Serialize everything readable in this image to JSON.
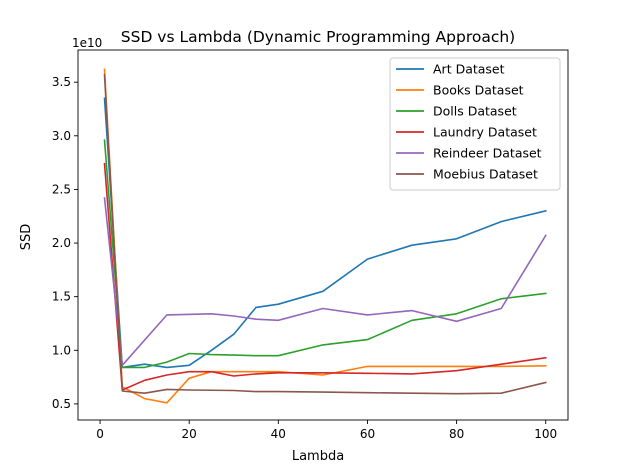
{
  "chart_data": {
    "type": "line",
    "title": "SSD vs Lambda (Dynamic Programming Approach)",
    "xlabel": "Lambda",
    "ylabel": "SSD",
    "y_offset_label": "1e10",
    "xlim": [
      -4.95,
      105.0
    ],
    "ylim": [
      0.35,
      3.8
    ],
    "xticks": [
      0,
      20,
      40,
      60,
      80,
      100
    ],
    "yticks": [
      0.5,
      1.0,
      1.5,
      2.0,
      2.5,
      3.0,
      3.5
    ],
    "ytick_labels": [
      "0.5",
      "1.0",
      "1.5",
      "2.0",
      "2.5",
      "3.0",
      "3.5"
    ],
    "grid": false,
    "legend_position": "top-right",
    "series": [
      {
        "name": "Art Dataset",
        "color": "#1f77b4",
        "x": [
          1,
          5,
          10,
          15,
          20,
          25,
          30,
          35,
          40,
          50,
          60,
          70,
          80,
          90,
          100
        ],
        "y": [
          3.35,
          0.84,
          0.87,
          0.84,
          0.86,
          1.0,
          1.15,
          1.4,
          1.43,
          1.55,
          1.85,
          1.98,
          2.04,
          2.2,
          2.3
        ]
      },
      {
        "name": "Books Dataset",
        "color": "#ff7f0e",
        "x": [
          1,
          5,
          10,
          15,
          20,
          25,
          30,
          35,
          40,
          50,
          60,
          70,
          80,
          90,
          100
        ],
        "y": [
          3.62,
          0.66,
          0.55,
          0.51,
          0.74,
          0.8,
          0.8,
          0.8,
          0.8,
          0.77,
          0.85,
          0.85,
          0.85,
          0.85,
          0.855
        ]
      },
      {
        "name": "Dolls Dataset",
        "color": "#2ca02c",
        "x": [
          1,
          5,
          10,
          15,
          20,
          25,
          30,
          35,
          40,
          50,
          60,
          70,
          80,
          90,
          100
        ],
        "y": [
          2.96,
          0.84,
          0.84,
          0.89,
          0.97,
          0.96,
          0.955,
          0.95,
          0.95,
          1.05,
          1.1,
          1.28,
          1.34,
          1.48,
          1.53
        ]
      },
      {
        "name": "Laundry Dataset",
        "color": "#d62728",
        "x": [
          1,
          5,
          10,
          15,
          20,
          25,
          30,
          35,
          40,
          50,
          60,
          70,
          80,
          90,
          100
        ],
        "y": [
          2.74,
          0.63,
          0.72,
          0.77,
          0.8,
          0.8,
          0.76,
          0.78,
          0.79,
          0.79,
          0.785,
          0.78,
          0.81,
          0.87,
          0.93
        ]
      },
      {
        "name": "Reindeer Dataset",
        "color": "#9467bd",
        "x": [
          1,
          5,
          15,
          25,
          30,
          35,
          40,
          50,
          60,
          70,
          80,
          90,
          100
        ],
        "y": [
          2.42,
          0.86,
          1.33,
          1.34,
          1.32,
          1.29,
          1.28,
          1.39,
          1.33,
          1.37,
          1.27,
          1.39,
          2.07
        ]
      },
      {
        "name": "Moebius Dataset",
        "color": "#8c564b",
        "x": [
          1,
          5,
          10,
          15,
          20,
          30,
          35,
          40,
          50,
          60,
          70,
          80,
          90,
          100
        ],
        "y": [
          3.57,
          0.62,
          0.6,
          0.635,
          0.63,
          0.625,
          0.615,
          0.615,
          0.61,
          0.605,
          0.6,
          0.595,
          0.6,
          0.7
        ]
      }
    ]
  }
}
